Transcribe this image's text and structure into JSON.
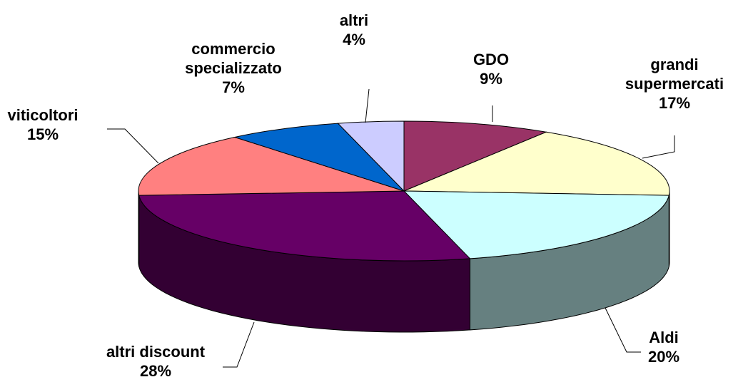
{
  "chart_data": {
    "type": "pie3d",
    "categories": [
      "GDO",
      "grandi supermercati",
      "Aldi",
      "altri discount",
      "viticoltori",
      "commercio specializzato",
      "altri"
    ],
    "values": [
      9,
      17,
      20,
      28,
      15,
      7,
      4
    ],
    "value_labels": [
      "9%",
      "17%",
      "20%",
      "28%",
      "15%",
      "7%",
      "4%"
    ],
    "colors": [
      "#993366",
      "#FFFFCC",
      "#CCFFFF",
      "#660066",
      "#FF8080",
      "#0066CC",
      "#CCCCFF"
    ]
  }
}
